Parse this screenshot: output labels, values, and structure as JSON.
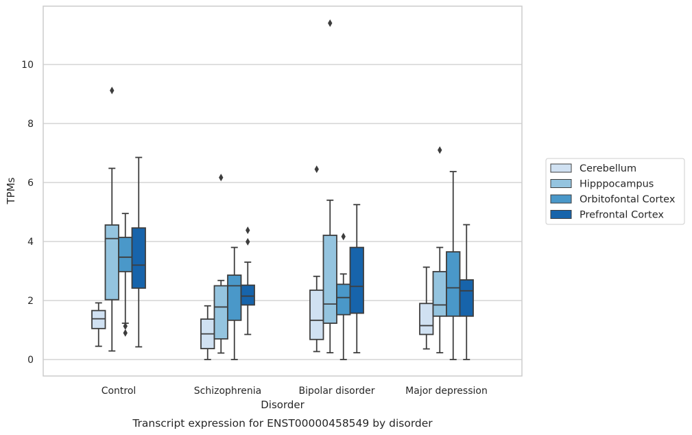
{
  "chart_data": {
    "type": "box",
    "caption": "Transcript expression for ENST00000458549 by disorder",
    "xlabel": "Disorder",
    "ylabel": "TPMs",
    "ylim": [
      -0.55,
      12.0
    ],
    "yticks": [
      0,
      2,
      4,
      6,
      8,
      10
    ],
    "grid": "horizontal",
    "legend_position": "right",
    "categories": [
      "Control",
      "Schizophrenia",
      "Bipolar disorder",
      "Major depression"
    ],
    "series": [
      {
        "name": "Cerebellum",
        "color": "#d0e1f2",
        "boxes": [
          {
            "whislo": 0.45,
            "q1": 1.05,
            "med": 1.38,
            "q3": 1.66,
            "whishi": 1.92,
            "fliers": []
          },
          {
            "whislo": 0.0,
            "q1": 0.37,
            "med": 0.87,
            "q3": 1.37,
            "whishi": 1.82,
            "fliers": []
          },
          {
            "whislo": 0.27,
            "q1": 0.68,
            "med": 1.33,
            "q3": 2.35,
            "whishi": 2.82,
            "fliers": [
              6.45
            ]
          },
          {
            "whislo": 0.36,
            "q1": 0.85,
            "med": 1.15,
            "q3": 1.9,
            "whishi": 3.13,
            "fliers": []
          }
        ]
      },
      {
        "name": "Hipppocampus",
        "color": "#94c4df",
        "boxes": [
          {
            "whislo": 0.29,
            "q1": 2.03,
            "med": 4.1,
            "q3": 4.56,
            "whishi": 6.48,
            "fliers": [
              9.12
            ]
          },
          {
            "whislo": 0.22,
            "q1": 0.7,
            "med": 1.78,
            "q3": 2.5,
            "whishi": 2.68,
            "fliers": [
              6.17
            ]
          },
          {
            "whislo": 0.23,
            "q1": 1.23,
            "med": 1.88,
            "q3": 4.21,
            "whishi": 5.4,
            "fliers": [
              11.4
            ]
          },
          {
            "whislo": 0.23,
            "q1": 1.47,
            "med": 1.85,
            "q3": 2.98,
            "whishi": 3.8,
            "fliers": [
              7.1
            ]
          }
        ]
      },
      {
        "name": "Orbitofontal Cortex",
        "color": "#4a98c9",
        "boxes": [
          {
            "whislo": 1.23,
            "q1": 2.98,
            "med": 3.47,
            "q3": 4.14,
            "whishi": 4.95,
            "fliers": [
              1.13,
              0.9
            ]
          },
          {
            "whislo": 0.0,
            "q1": 1.33,
            "med": 2.5,
            "q3": 2.86,
            "whishi": 3.8,
            "fliers": []
          },
          {
            "whislo": 0.0,
            "q1": 1.52,
            "med": 2.1,
            "q3": 2.55,
            "whishi": 2.9,
            "fliers": [
              4.17
            ]
          },
          {
            "whislo": 0.0,
            "q1": 1.47,
            "med": 2.43,
            "q3": 3.65,
            "whishi": 6.37,
            "fliers": []
          }
        ]
      },
      {
        "name": "Prefrontal Cortex",
        "color": "#1764ab",
        "boxes": [
          {
            "whislo": 0.43,
            "q1": 2.42,
            "med": 3.2,
            "q3": 4.46,
            "whishi": 6.85,
            "fliers": []
          },
          {
            "whislo": 0.85,
            "q1": 1.85,
            "med": 2.15,
            "q3": 2.52,
            "whishi": 3.3,
            "fliers": [
              3.99,
              4.38
            ]
          },
          {
            "whislo": 0.23,
            "q1": 1.57,
            "med": 2.48,
            "q3": 3.8,
            "whishi": 5.25,
            "fliers": []
          },
          {
            "whislo": 0.0,
            "q1": 1.47,
            "med": 2.33,
            "q3": 2.7,
            "whishi": 4.57,
            "fliers": []
          }
        ]
      }
    ]
  }
}
